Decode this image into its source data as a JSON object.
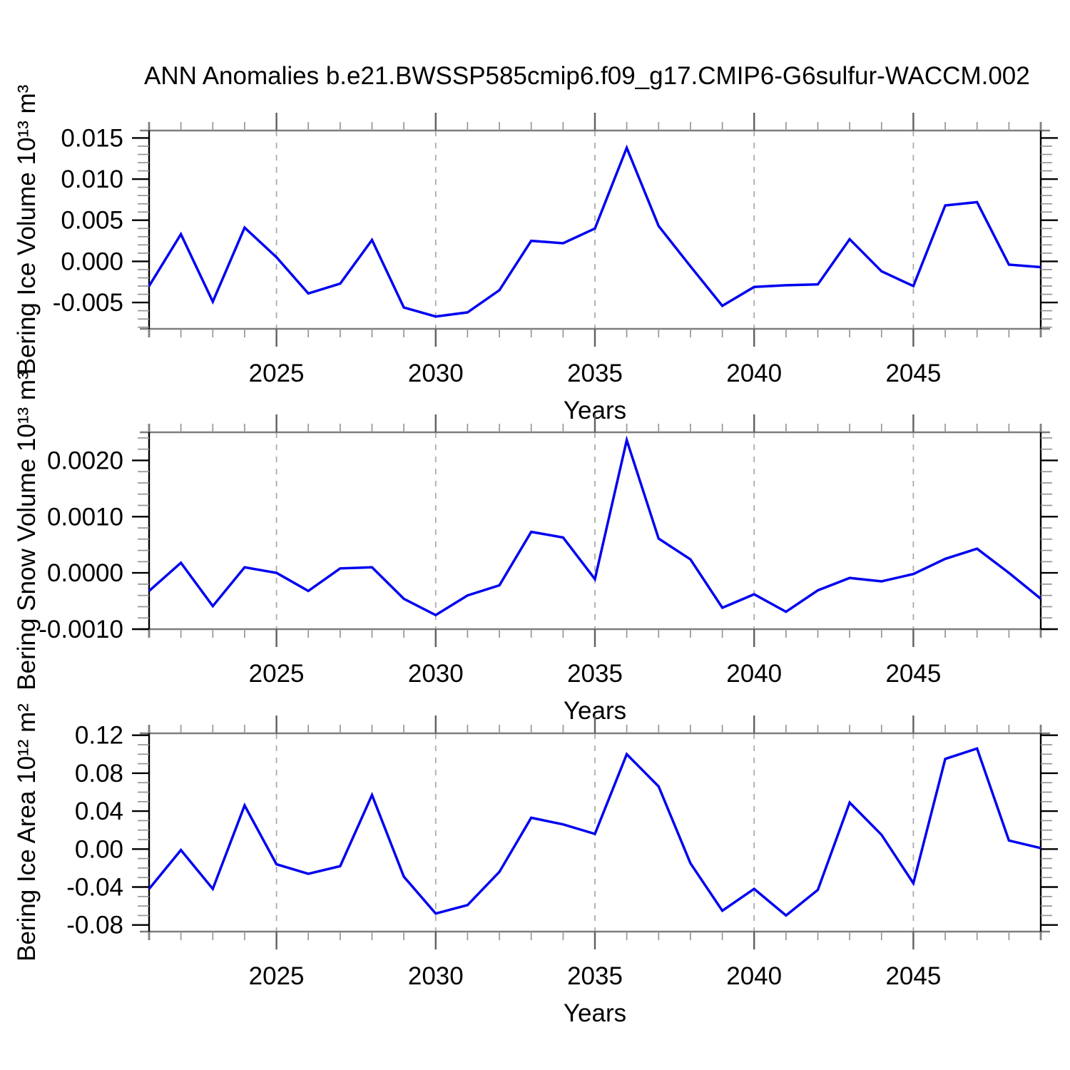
{
  "title": "ANN Anomalies b.e21.BWSSP585cmip6.f09_g17.CMIP6-G6sulfur-WACCM.002",
  "x_axis": {
    "label": "Years",
    "range": [
      2021,
      2049
    ],
    "major_ticks": [
      2025,
      2030,
      2035,
      2040,
      2045
    ],
    "minor_tick_step": 1,
    "dashed_gridlines": true
  },
  "style": {
    "line_color": "#0000f0",
    "axis_y_color": "#000000",
    "axis_x_color": "#7d7d7d",
    "x_major_tick_color": "#606060",
    "minor_tick_color": "#969696",
    "grid_color": "#ababab",
    "text_color": "#000000",
    "background": "#ffffff"
  },
  "chart_data": [
    {
      "type": "line",
      "name": "bering-ice-volume",
      "ylabel": "Bering Ice Volume 10¹³ m³",
      "xlabel": "Years",
      "x": [
        2021,
        2022,
        2023,
        2024,
        2025,
        2026,
        2027,
        2028,
        2029,
        2030,
        2031,
        2032,
        2033,
        2034,
        2035,
        2036,
        2037,
        2038,
        2039,
        2040,
        2041,
        2042,
        2043,
        2044,
        2045,
        2046,
        2047,
        2048,
        2049
      ],
      "values": [
        -0.003,
        0.0033,
        -0.0049,
        0.0041,
        0.0005,
        -0.0039,
        -0.0027,
        0.0026,
        -0.0056,
        -0.0067,
        -0.0062,
        -0.0035,
        0.0025,
        0.0022,
        0.004,
        0.0138,
        0.0043,
        -0.0006,
        -0.0054,
        -0.0031,
        -0.0029,
        -0.0028,
        0.0027,
        -0.0012,
        -0.003,
        0.0068,
        0.0072,
        -0.0004,
        -0.0007
      ],
      "ylim": [
        -0.0082,
        0.0159
      ],
      "yticks": {
        "labels": [
          "0.015",
          "0.010",
          "0.005",
          "0.000",
          "-0.005"
        ],
        "values": [
          0.015,
          0.01,
          0.005,
          0.0,
          -0.005
        ]
      },
      "yminor_step": 0.001
    },
    {
      "type": "line",
      "name": "bering-snow-volume",
      "ylabel": "Bering Snow Volume 10¹³ m³",
      "xlabel": "Years",
      "x": [
        2021,
        2022,
        2023,
        2024,
        2025,
        2026,
        2027,
        2028,
        2029,
        2030,
        2031,
        2032,
        2033,
        2034,
        2035,
        2036,
        2037,
        2038,
        2039,
        2040,
        2041,
        2042,
        2043,
        2044,
        2045,
        2046,
        2047,
        2048,
        2049
      ],
      "values": [
        -0.00032,
        0.00018,
        -0.00059,
        0.0001,
        0.0,
        -0.00032,
        8e-05,
        0.0001,
        -0.00046,
        -0.00075,
        -0.0004,
        -0.00022,
        0.00073,
        0.00063,
        -0.00011,
        0.00236,
        0.00061,
        0.00024,
        -0.00062,
        -0.00038,
        -0.00069,
        -0.00031,
        -9e-05,
        -0.00015,
        -2e-05,
        0.00025,
        0.00043,
        0.0,
        -0.00046
      ],
      "ylim": [
        -0.001,
        0.0025
      ],
      "yticks": {
        "labels": [
          "0.0020",
          "0.0010",
          "0.0000",
          "-0.0010"
        ],
        "values": [
          0.002,
          0.001,
          0.0,
          -0.001
        ]
      },
      "yminor_step": 0.0002
    },
    {
      "type": "line",
      "name": "bering-ice-area",
      "ylabel": "Bering Ice Area 10¹² m²",
      "xlabel": "Years",
      "x": [
        2021,
        2022,
        2023,
        2024,
        2025,
        2026,
        2027,
        2028,
        2029,
        2030,
        2031,
        2032,
        2033,
        2034,
        2035,
        2036,
        2037,
        2038,
        2039,
        2040,
        2041,
        2042,
        2043,
        2044,
        2045,
        2046,
        2047,
        2048,
        2049
      ],
      "values": [
        -0.042,
        -0.001,
        -0.042,
        0.046,
        -0.016,
        -0.026,
        -0.018,
        0.057,
        -0.029,
        -0.068,
        -0.059,
        -0.024,
        0.033,
        0.026,
        0.016,
        0.1,
        0.066,
        -0.015,
        -0.065,
        -0.042,
        -0.07,
        -0.043,
        0.049,
        0.015,
        -0.036,
        0.095,
        0.106,
        0.009,
        0.001
      ],
      "ylim": [
        -0.087,
        0.122
      ],
      "yticks": {
        "labels": [
          "0.12",
          "0.08",
          "0.04",
          "0.00",
          "-0.04",
          "-0.08"
        ],
        "values": [
          0.12,
          0.08,
          0.04,
          0.0,
          -0.04,
          -0.08
        ]
      },
      "yminor_step": 0.01
    }
  ]
}
